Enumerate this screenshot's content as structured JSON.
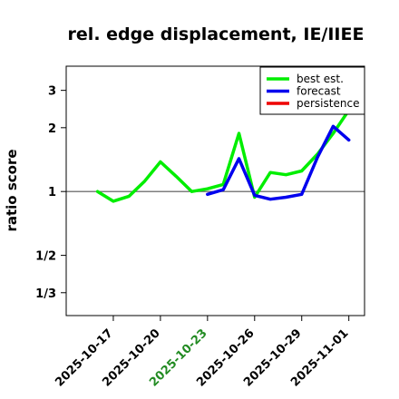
{
  "chart_data": {
    "type": "line",
    "title": "rel. edge displacement, IE/IIEE",
    "xlabel": "",
    "ylabel": "ratio score",
    "y_scale": "log",
    "ylim": [
      0.26,
      3.9
    ],
    "yticks": [
      {
        "value": 0.3333,
        "label": "1/3"
      },
      {
        "value": 0.5,
        "label": "1/2"
      },
      {
        "value": 1,
        "label": "1"
      },
      {
        "value": 2,
        "label": "2"
      },
      {
        "value": 3,
        "label": "3"
      }
    ],
    "xlim": [
      "2025-10-14",
      "2025-11-02"
    ],
    "xticks": [
      {
        "value": "2025-10-17",
        "label": "2025-10-17",
        "color": "#000000"
      },
      {
        "value": "2025-10-20",
        "label": "2025-10-20",
        "color": "#000000"
      },
      {
        "value": "2025-10-23",
        "label": "2025-10-23",
        "color": "#228B22"
      },
      {
        "value": "2025-10-26",
        "label": "2025-10-26",
        "color": "#000000"
      },
      {
        "value": "2025-10-29",
        "label": "2025-10-29",
        "color": "#000000"
      },
      {
        "value": "2025-11-01",
        "label": "2025-11-01",
        "color": "#000000"
      }
    ],
    "reference_line": 1,
    "legend_position": "top-right",
    "series": [
      {
        "name": "best est.",
        "color": "#00ee00",
        "x": [
          "2025-10-16",
          "2025-10-17",
          "2025-10-18",
          "2025-10-19",
          "2025-10-20",
          "2025-10-21",
          "2025-10-22",
          "2025-10-23",
          "2025-10-24",
          "2025-10-25",
          "2025-10-26",
          "2025-10-27",
          "2025-10-28",
          "2025-10-29",
          "2025-10-30",
          "2025-10-31",
          "2025-11-01"
        ],
        "values": [
          1.0,
          0.9,
          0.95,
          1.12,
          1.38,
          1.18,
          1.0,
          1.03,
          1.08,
          1.88,
          0.94,
          1.23,
          1.2,
          1.25,
          1.5,
          1.88,
          2.42
        ]
      },
      {
        "name": "forecast",
        "color": "#0000ee",
        "x": [
          "2025-10-23",
          "2025-10-24",
          "2025-10-25",
          "2025-10-26",
          "2025-10-27",
          "2025-10-28",
          "2025-10-29",
          "2025-10-30",
          "2025-10-31",
          "2025-11-01"
        ],
        "values": [
          0.97,
          1.02,
          1.43,
          0.96,
          0.92,
          0.94,
          0.97,
          1.45,
          2.03,
          1.75
        ]
      },
      {
        "name": "persistence",
        "color": "#ee0000",
        "x": [],
        "values": []
      }
    ]
  }
}
